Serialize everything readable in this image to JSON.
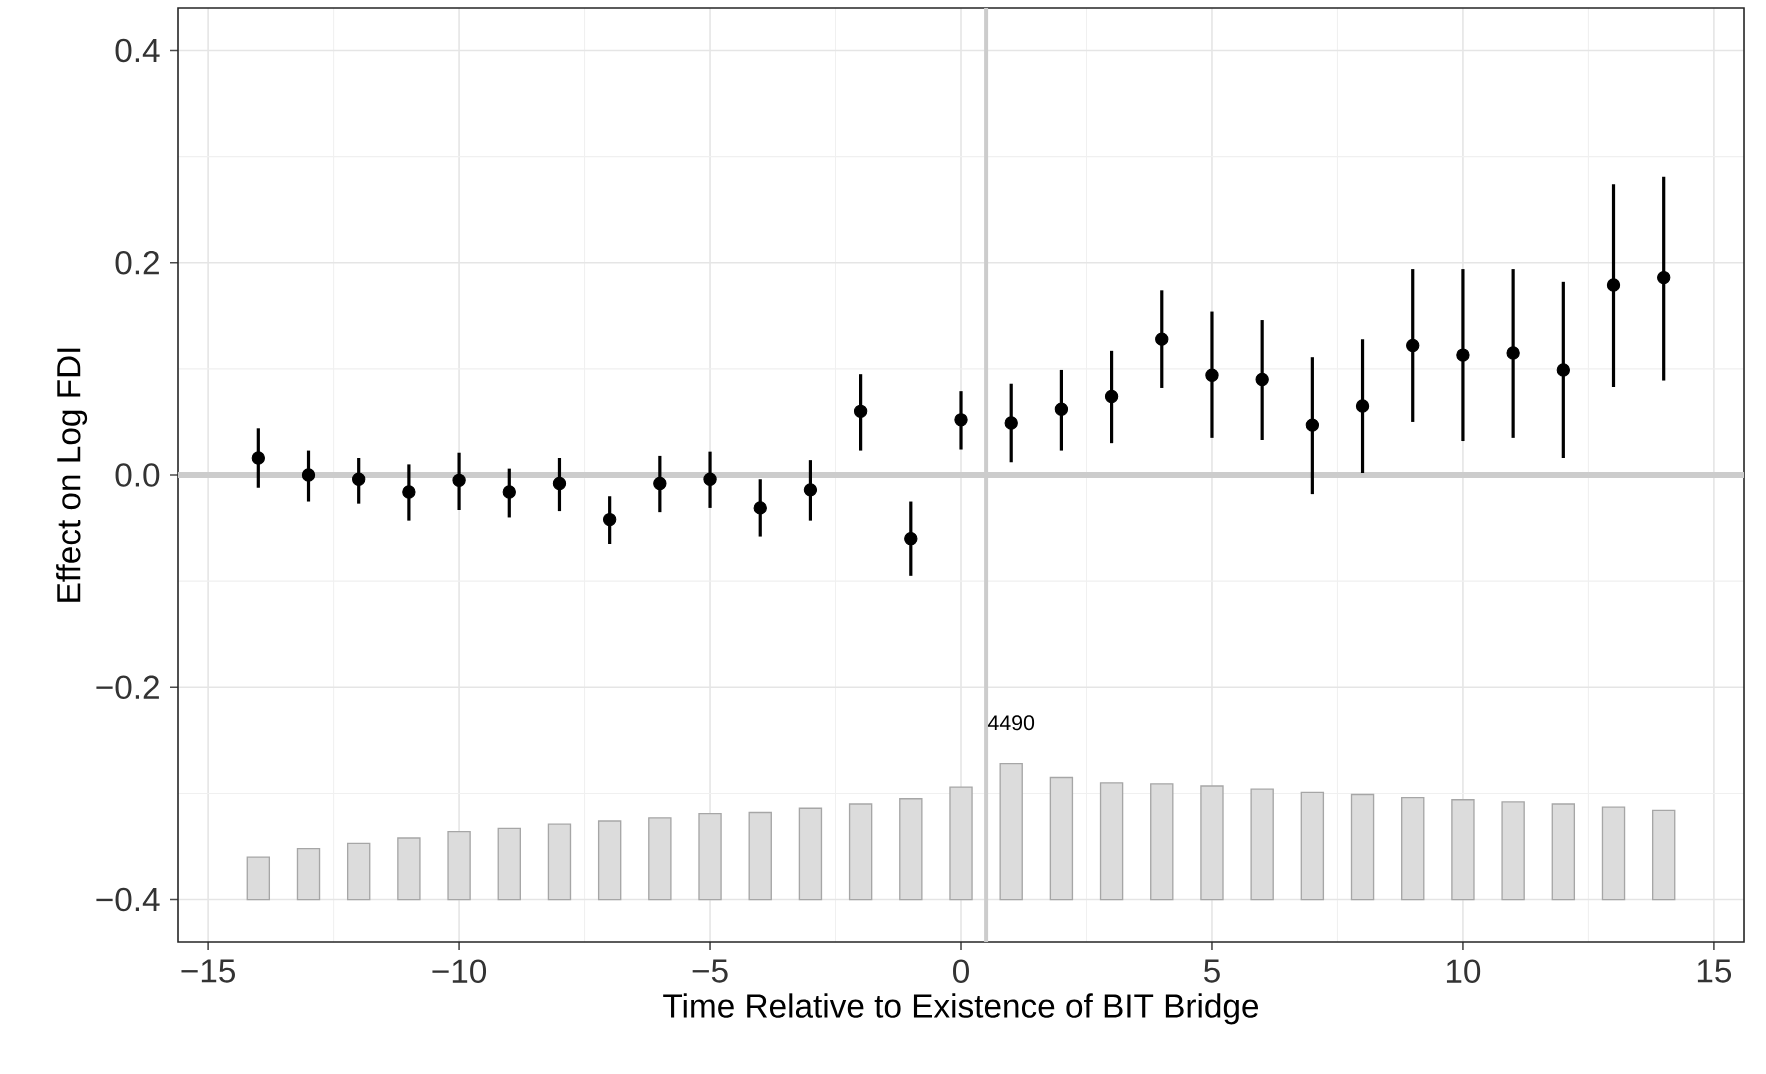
{
  "chart_data": {
    "type": "scatter",
    "xlabel": "Time Relative to Existence of BIT Bridge",
    "ylabel": "Effect on Log FDI",
    "x": [
      -14,
      -13,
      -12,
      -11,
      -10,
      -9,
      -8,
      -7,
      -6,
      -5,
      -4,
      -3,
      -2,
      -1,
      0,
      1,
      2,
      3,
      4,
      5,
      6,
      7,
      8,
      9,
      10,
      11,
      12,
      13,
      14
    ],
    "series": [
      {
        "type": "bar",
        "color": "#dcdcdc",
        "base": [
          -0.4,
          -0.4,
          -0.4,
          -0.4,
          -0.4,
          -0.4,
          -0.4,
          -0.4,
          -0.4,
          -0.4,
          -0.4,
          -0.4,
          -0.4,
          -0.4,
          -0.4,
          -0.4,
          -0.4,
          -0.4,
          -0.4,
          -0.4,
          -0.4,
          -0.4,
          -0.4,
          -0.4,
          -0.4,
          -0.4,
          -0.4,
          -0.4,
          -0.4
        ],
        "values": [
          0.04,
          0.048,
          0.053,
          0.058,
          0.064,
          0.067,
          0.071,
          0.074,
          0.077,
          0.081,
          0.082,
          0.086,
          0.09,
          0.095,
          0.106,
          0.128,
          0.115,
          0.11,
          0.109,
          0.107,
          0.104,
          0.101,
          0.099,
          0.096,
          0.094,
          0.092,
          0.09,
          0.087,
          0.084
        ]
      },
      {
        "color": "#000000",
        "values": [
          0.016,
          0.0,
          -0.004,
          -0.016,
          -0.005,
          -0.016,
          -0.008,
          -0.042,
          -0.008,
          -0.004,
          -0.031,
          -0.014,
          0.06,
          -0.06,
          0.052,
          0.049,
          0.062,
          0.074,
          0.128,
          0.094,
          0.09,
          0.047,
          0.065,
          0.122,
          0.113,
          0.115,
          0.099,
          0.179,
          0.186
        ],
        "errors": [
          [
            -0.012,
            0.044
          ],
          [
            -0.025,
            0.023
          ],
          [
            -0.027,
            0.016
          ],
          [
            -0.043,
            0.01
          ],
          [
            -0.033,
            0.021
          ],
          [
            -0.04,
            0.006
          ],
          [
            -0.034,
            0.016
          ],
          [
            -0.065,
            -0.02
          ],
          [
            -0.035,
            0.018
          ],
          [
            -0.031,
            0.022
          ],
          [
            -0.058,
            -0.004
          ],
          [
            -0.043,
            0.014
          ],
          [
            0.023,
            0.095
          ],
          [
            -0.095,
            -0.025
          ],
          [
            0.024,
            0.079
          ],
          [
            0.012,
            0.086
          ],
          [
            0.023,
            0.099
          ],
          [
            0.03,
            0.117
          ],
          [
            0.082,
            0.174
          ],
          [
            0.035,
            0.154
          ],
          [
            0.033,
            0.146
          ],
          [
            -0.018,
            0.111
          ],
          [
            0.002,
            0.128
          ],
          [
            0.05,
            0.194
          ],
          [
            0.032,
            0.194
          ],
          [
            0.035,
            0.194
          ],
          [
            0.016,
            0.182
          ],
          [
            0.083,
            0.274
          ],
          [
            0.089,
            0.281
          ]
        ]
      }
    ],
    "marker": "circle",
    "xlim": [
      -15.6,
      15.6
    ],
    "ylim": [
      -0.44,
      0.44
    ],
    "xticks": [
      {
        "value": -15,
        "label": "−15"
      },
      {
        "value": -10,
        "label": "−10"
      },
      {
        "value": -5,
        "label": "−5"
      },
      0,
      5,
      10,
      15
    ],
    "yticks": [
      {
        "value": -0.4,
        "label": "−0.4"
      },
      {
        "value": -0.2,
        "label": "−0.2"
      },
      {
        "value": 0,
        "label": "0.0"
      },
      0.2,
      0.4
    ],
    "grid": true,
    "ref_lines": [
      {
        "axis": "y",
        "value": 0,
        "color": "#cccccc"
      },
      {
        "axis": "x",
        "value": 0.5,
        "color": "#cccccc"
      }
    ],
    "annotations": [
      {
        "text": "4490",
        "x": 1,
        "y": -0.272
      }
    ]
  }
}
